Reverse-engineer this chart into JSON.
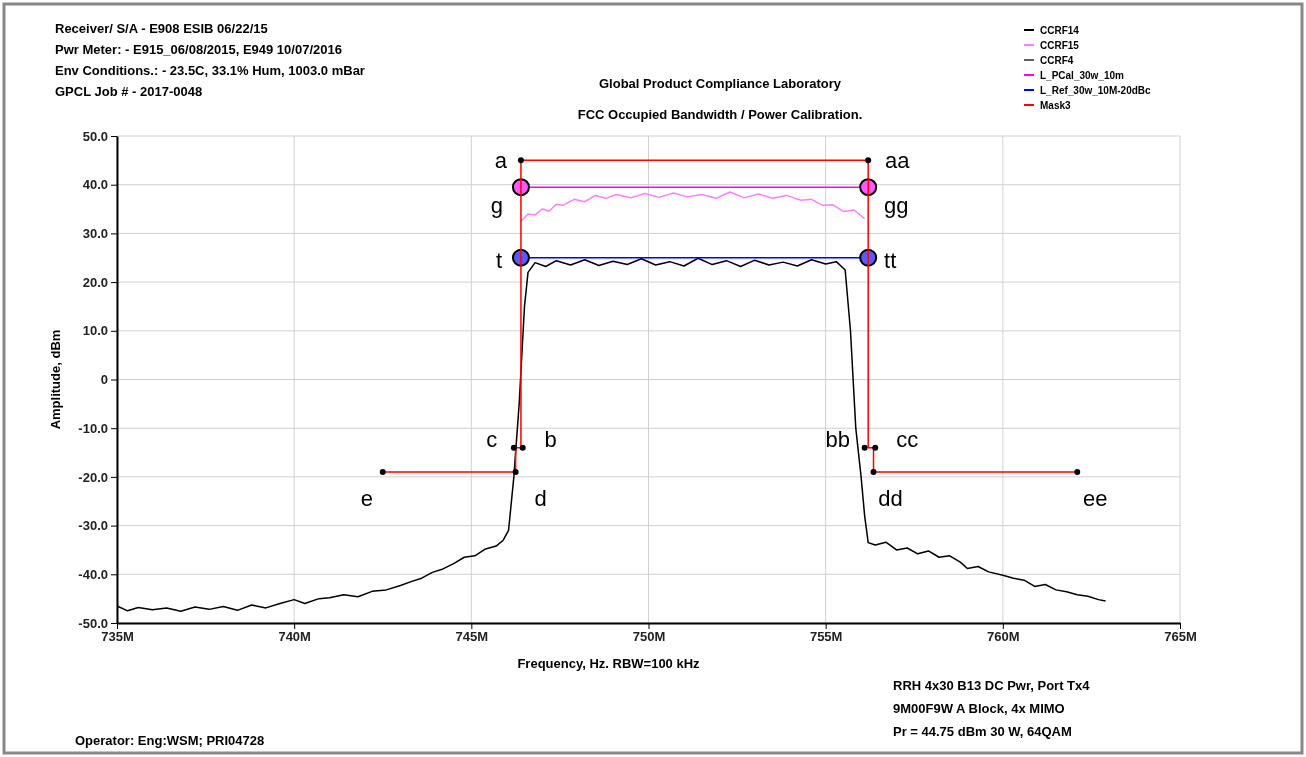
{
  "chart_data": {
    "type": "line",
    "title": "Global Product Compliance Laboratory",
    "subtitle": "FCC Occupied Bandwidth / Power Calibration.",
    "xlabel": "Frequency, Hz.   RBW=100 kHz",
    "ylabel": "Amplitude, dBm",
    "xlim": [
      735,
      765
    ],
    "xticks": [
      {
        "value": 735,
        "label": "735M"
      },
      {
        "value": 740,
        "label": "740M"
      },
      {
        "value": 745,
        "label": "745M"
      },
      {
        "value": 750,
        "label": "750M"
      },
      {
        "value": 755,
        "label": "755M"
      },
      {
        "value": 760,
        "label": "760M"
      },
      {
        "value": 765,
        "label": "765M"
      }
    ],
    "ylim": [
      -50,
      50
    ],
    "yticks": [
      {
        "value": -50,
        "label": "-50.0"
      },
      {
        "value": -40,
        "label": "-40.0"
      },
      {
        "value": -30,
        "label": "-30.0"
      },
      {
        "value": -20,
        "label": "-20.0"
      },
      {
        "value": -10,
        "label": "-10.0"
      },
      {
        "value": 0,
        "label": "0"
      },
      {
        "value": 10,
        "label": "10.0"
      },
      {
        "value": 20,
        "label": "20.0"
      },
      {
        "value": 30,
        "label": "30.0"
      },
      {
        "value": 40,
        "label": "40.0"
      },
      {
        "value": 50,
        "label": "50.0"
      }
    ],
    "grid": true,
    "legend": "top right",
    "line_style": "solid",
    "series": [
      {
        "name": "CCRF14",
        "color": "#000000",
        "marker": "none",
        "x": [
          735,
          735.3,
          735.6,
          736,
          736.4,
          736.8,
          737.2,
          737.6,
          738,
          738.4,
          738.8,
          739.2,
          739.6,
          740,
          740.3,
          740.7,
          741,
          741.4,
          741.8,
          742.2,
          742.6,
          743,
          743.3,
          743.6,
          743.9,
          744.2,
          744.5,
          744.8,
          745.1,
          745.4,
          745.7,
          745.9,
          746.05,
          746.2,
          746.35,
          746.5,
          746.6,
          746.8,
          747.1,
          747.4,
          747.8,
          748.2,
          748.6,
          749,
          749.4,
          749.8,
          750.2,
          750.6,
          751,
          751.4,
          751.8,
          752.2,
          752.6,
          753,
          753.4,
          753.8,
          754.2,
          754.6,
          755,
          755.3,
          755.55,
          755.7,
          755.85,
          756,
          756.1,
          756.2,
          756.4,
          756.7,
          757,
          757.3,
          757.6,
          757.9,
          758.2,
          758.5,
          758.8,
          759,
          759.3,
          759.6,
          760,
          760.3,
          760.6,
          760.9,
          761.2,
          761.5,
          761.8,
          762.1,
          762.4,
          762.7,
          762.9
        ],
        "values": [
          -46.5,
          -47.5,
          -46.8,
          -47.3,
          -46.9,
          -47.6,
          -46.7,
          -47.2,
          -46.6,
          -47.4,
          -46.3,
          -46.9,
          -46,
          -45.2,
          -46,
          -45,
          -44.8,
          -44.2,
          -44.6,
          -43.5,
          -43.2,
          -42.3,
          -41.5,
          -40.8,
          -39.6,
          -38.9,
          -37.8,
          -36.5,
          -36.2,
          -34.8,
          -34.2,
          -33,
          -31,
          -20,
          -5,
          15,
          22,
          24,
          23.2,
          24.4,
          23.5,
          24.6,
          23.4,
          24.3,
          23.6,
          24.8,
          23.5,
          24.2,
          23.3,
          24.9,
          23.6,
          24.4,
          23.2,
          24.5,
          23.5,
          24.1,
          23.3,
          24.6,
          23.7,
          24.2,
          22.5,
          10,
          -10,
          -20,
          -28,
          -33.5,
          -34,
          -33.4,
          -35,
          -34.6,
          -35.8,
          -35.2,
          -36.5,
          -36.2,
          -37.5,
          -38.8,
          -38.4,
          -39.5,
          -40.2,
          -40.8,
          -41.2,
          -42.5,
          -42.1,
          -43.2,
          -43.6,
          -44.2,
          -44.5,
          -45.2,
          -45.5
        ]
      },
      {
        "name": "CCRF15",
        "color": "#ff80ff",
        "marker": "none",
        "x": [
          746.4,
          746.6,
          746.8,
          747,
          747.2,
          747.4,
          747.6,
          747.9,
          748.2,
          748.5,
          748.8,
          749.1,
          749.5,
          749.9,
          750.3,
          750.7,
          751.1,
          751.5,
          751.9,
          752.3,
          752.7,
          753.1,
          753.5,
          753.9,
          754.3,
          754.6,
          754.9,
          755.2,
          755.5,
          755.8,
          756.1
        ],
        "values": [
          32.5,
          34,
          33.8,
          35,
          34.6,
          36,
          35.8,
          37,
          36.5,
          37.8,
          37.2,
          38,
          37.3,
          38.2,
          37.4,
          38.3,
          37.5,
          38,
          37.2,
          38.5,
          37.3,
          38.1,
          37.2,
          37.8,
          36.8,
          37,
          35.8,
          35.9,
          34.5,
          34.8,
          33
        ]
      },
      {
        "name": "CCRF4",
        "color": "#606060",
        "marker": "none"
      },
      {
        "name": "L_PCal_30w_10m",
        "color": "#ff00ff",
        "marker": "circle",
        "x": [
          746.4,
          756.2
        ],
        "values": [
          39.5,
          39.5
        ]
      },
      {
        "name": "L_Ref_30w_10M-20dBc",
        "color": "#0000ff",
        "marker": "circle",
        "x": [
          746.4,
          756.2
        ],
        "values": [
          25,
          25
        ]
      },
      {
        "name": "Mask3",
        "color": "#ff0000",
        "marker": "none",
        "x": [
          742.5,
          746.25,
          746.25,
          746.4,
          746.4,
          756.2,
          756.2,
          756.35,
          756.35,
          762.1
        ],
        "values": [
          -19,
          -19,
          -14,
          -14,
          45,
          45,
          -14,
          -14,
          -19,
          -19
        ]
      },
      {
        "type": "scatter",
        "color": "#000000",
        "marker": "circle",
        "x": [
          746.4,
          756.2,
          746.2,
          746.45,
          756.1,
          756.4,
          742.5,
          746.25,
          756.35,
          762.1
        ],
        "values": [
          45,
          45,
          -14,
          -14,
          -14,
          -14,
          -19,
          -19,
          -19,
          -19
        ]
      }
    ],
    "annotations": [
      "Receiver/ S/A - E908 ESIB 06/22/15",
      "Pwr Meter: - E915_06/08/2015, E949 10/07/2016",
      "Env Conditions.: - 23.5C, 33.1% Hum,  1003.0 mBar",
      "GPCL Job #  - 2017-0048",
      "RRH 4x30 B13  DC Pwr,  Port Tx4",
      "9M00F9W  A Block, 4x MIMO",
      "Pr = 44.75 dBm 30 W, 64QAM",
      "Operator:  Eng:WSM;  PRI04728",
      {
        "text": "a",
        "x": 746.4,
        "y": 45
      },
      {
        "text": "aa",
        "x": 756.2,
        "y": 45
      },
      {
        "text": "g",
        "x": 746.4,
        "y": 39.5
      },
      {
        "text": "gg",
        "x": 756.2,
        "y": 39.5
      },
      {
        "text": "t",
        "x": 746.4,
        "y": 25
      },
      {
        "text": "tt",
        "x": 756.2,
        "y": 25
      },
      {
        "text": "c",
        "x": 746.2,
        "y": -14
      },
      {
        "text": "b",
        "x": 746.45,
        "y": -14
      },
      {
        "text": "bb",
        "x": 756.1,
        "y": -14
      },
      {
        "text": "cc",
        "x": 756.4,
        "y": -14
      },
      {
        "text": "e",
        "x": 742.5,
        "y": -19
      },
      {
        "text": "d",
        "x": 746.25,
        "y": -19
      },
      {
        "text": "dd",
        "x": 756.35,
        "y": -19
      },
      {
        "text": "ee",
        "x": 762.1,
        "y": -19
      }
    ]
  }
}
